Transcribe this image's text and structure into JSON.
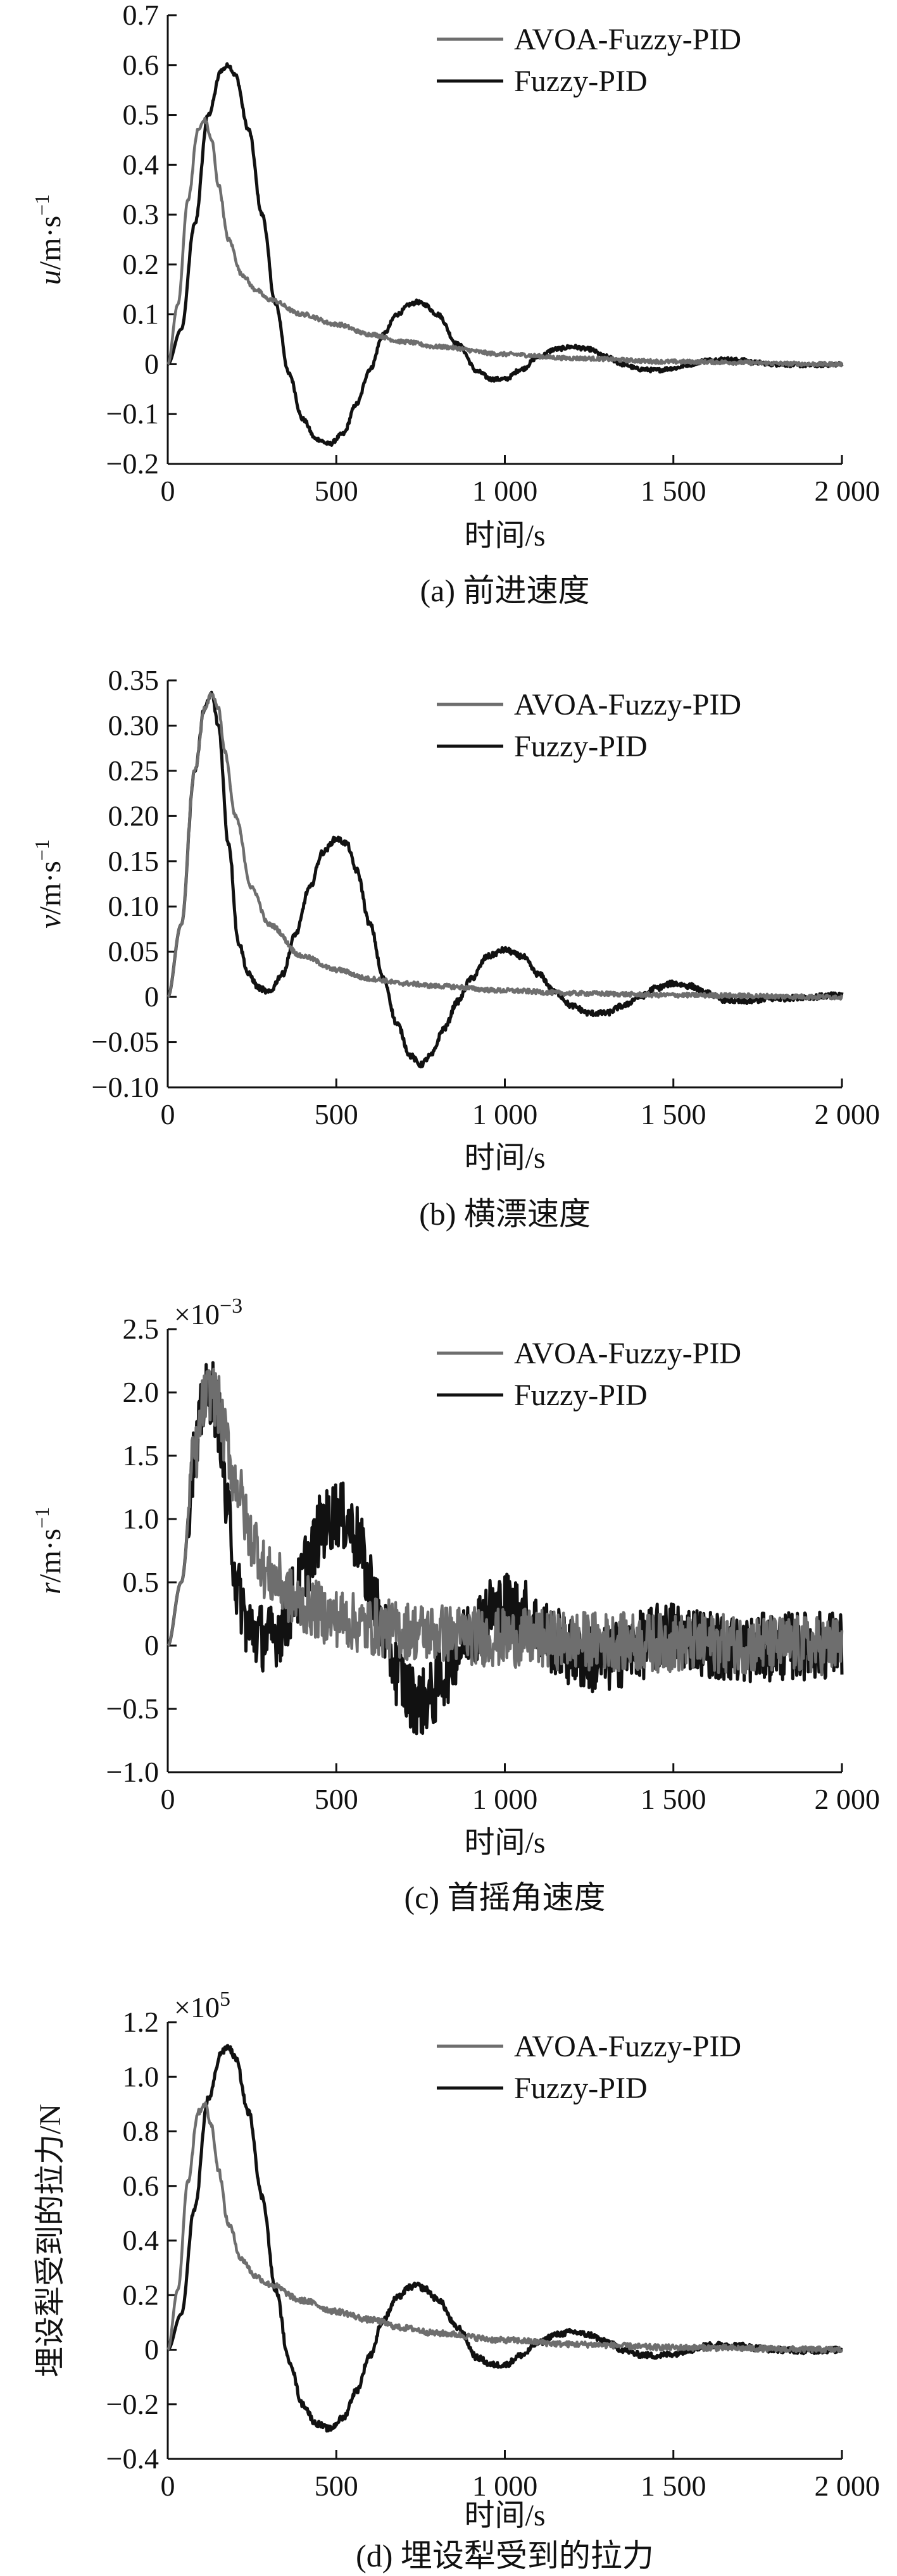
{
  "chart_data": [
    {
      "type": "line",
      "ylabel_var": "u",
      "ylabel_unit": "/m·s",
      "ylabel_sup": "−1",
      "xlabel": "时间/s",
      "caption": "(a) 前进速度",
      "exponent_base": "",
      "exponent_power": "",
      "xlim": [
        0,
        2000
      ],
      "ylim": [
        -0.2,
        0.7
      ],
      "xticks": [
        0,
        500,
        1000,
        1500,
        2000
      ],
      "xtick_labels": [
        "0",
        "500",
        "1 000",
        "1 500",
        "2 000"
      ],
      "yticks": [
        -0.2,
        -0.1,
        0,
        0.1,
        0.2,
        0.3,
        0.4,
        0.5,
        0.6,
        0.7
      ],
      "ytick_labels": [
        "−0.2",
        "−0.1",
        "0",
        "0.1",
        "0.2",
        "0.3",
        "0.4",
        "0.5",
        "0.6",
        "0.7"
      ],
      "legend_position": "top-right",
      "series": [
        {
          "name": "AVOA-Fuzzy-PID",
          "color": "#6e6e6e",
          "x": [
            0,
            30,
            60,
            90,
            110,
            130,
            150,
            180,
            220,
            260,
            300,
            400,
            500,
            600,
            700,
            800,
            1000,
            1200,
            1500,
            2000
          ],
          "y": [
            0,
            0.12,
            0.33,
            0.47,
            0.49,
            0.45,
            0.36,
            0.25,
            0.18,
            0.15,
            0.13,
            0.1,
            0.08,
            0.06,
            0.045,
            0.035,
            0.02,
            0.012,
            0.005,
            0
          ],
          "noise": 0.004
        },
        {
          "name": "Fuzzy-PID",
          "color": "#111111",
          "x": [
            0,
            40,
            80,
            120,
            160,
            180,
            200,
            240,
            280,
            320,
            360,
            400,
            440,
            480,
            520,
            560,
            600,
            640,
            680,
            720,
            740,
            760,
            800,
            860,
            920,
            960,
            1000,
            1050,
            1100,
            1150,
            1200,
            1250,
            1300,
            1350,
            1400,
            1450,
            1500,
            1550,
            1600,
            1650,
            1700,
            1750,
            1800,
            1900,
            2000
          ],
          "y": [
            0,
            0.07,
            0.28,
            0.5,
            0.59,
            0.6,
            0.58,
            0.47,
            0.3,
            0.12,
            -0.02,
            -0.11,
            -0.15,
            -0.16,
            -0.14,
            -0.08,
            -0.01,
            0.06,
            0.1,
            0.12,
            0.125,
            0.12,
            0.1,
            0.04,
            -0.015,
            -0.03,
            -0.03,
            -0.01,
            0.015,
            0.03,
            0.035,
            0.03,
            0.015,
            0.0,
            -0.01,
            -0.012,
            -0.008,
            0.0,
            0.008,
            0.01,
            0.008,
            0.003,
            0.0,
            -0.002,
            0
          ],
          "noise": 0.004
        }
      ]
    },
    {
      "type": "line",
      "ylabel_var": "v",
      "ylabel_unit": "/m·s",
      "ylabel_sup": "−1",
      "xlabel": "时间/s",
      "caption": "(b) 横漂速度",
      "exponent_base": "",
      "exponent_power": "",
      "xlim": [
        0,
        2000
      ],
      "ylim": [
        -0.1,
        0.35
      ],
      "xticks": [
        0,
        500,
        1000,
        1500,
        2000
      ],
      "xtick_labels": [
        "0",
        "500",
        "1 000",
        "1 500",
        "2 000"
      ],
      "yticks": [
        -0.1,
        -0.05,
        0,
        0.05,
        0.1,
        0.15,
        0.2,
        0.25,
        0.3,
        0.35
      ],
      "ytick_labels": [
        "−0.10",
        "−0.05",
        "0",
        "0.05",
        "0.10",
        "0.15",
        "0.20",
        "0.25",
        "0.30",
        "0.35"
      ],
      "legend_position": "top-right",
      "series": [
        {
          "name": "AVOA-Fuzzy-PID",
          "color": "#6e6e6e",
          "x": [
            0,
            40,
            80,
            110,
            130,
            150,
            170,
            200,
            250,
            300,
            400,
            500,
            600,
            700,
            800,
            1000,
            1200,
            1500,
            2000
          ],
          "y": [
            0,
            0.08,
            0.25,
            0.32,
            0.335,
            0.32,
            0.27,
            0.2,
            0.12,
            0.08,
            0.045,
            0.03,
            0.02,
            0.015,
            0.012,
            0.007,
            0.004,
            0.002,
            0
          ],
          "noise": 0.005
        },
        {
          "name": "Fuzzy-PID",
          "color": "#111111",
          "x": [
            0,
            40,
            80,
            110,
            130,
            150,
            180,
            210,
            240,
            270,
            300,
            340,
            380,
            420,
            460,
            500,
            530,
            560,
            600,
            640,
            680,
            720,
            750,
            780,
            820,
            860,
            900,
            950,
            1000,
            1050,
            1100,
            1150,
            1200,
            1250,
            1300,
            1350,
            1400,
            1450,
            1500,
            1550,
            1600,
            1650,
            1700,
            1800,
            1900,
            2000
          ],
          "y": [
            0,
            0.08,
            0.25,
            0.32,
            0.335,
            0.3,
            0.17,
            0.06,
            0.025,
            0.01,
            0.005,
            0.025,
            0.07,
            0.12,
            0.16,
            0.175,
            0.17,
            0.14,
            0.08,
            0.02,
            -0.03,
            -0.065,
            -0.075,
            -0.065,
            -0.035,
            -0.005,
            0.02,
            0.045,
            0.052,
            0.045,
            0.025,
            0.005,
            -0.01,
            -0.018,
            -0.018,
            -0.01,
            0.0,
            0.01,
            0.015,
            0.012,
            0.004,
            -0.003,
            -0.005,
            -0.002,
            0.0,
            0.002
          ],
          "noise": 0.006
        }
      ]
    },
    {
      "type": "line",
      "ylabel_var": "r",
      "ylabel_unit": "/m·s",
      "ylabel_sup": "−1",
      "xlabel": "时间/s",
      "caption": "(c) 首摇角速度",
      "exponent_base": "×10",
      "exponent_power": "−3",
      "xlim": [
        0,
        2000
      ],
      "ylim": [
        -1.0,
        2.5
      ],
      "xticks": [
        0,
        500,
        1000,
        1500,
        2000
      ],
      "xtick_labels": [
        "0",
        "500",
        "1 000",
        "1 500",
        "2 000"
      ],
      "yticks": [
        -1.0,
        -0.5,
        0,
        0.5,
        1.0,
        1.5,
        2.0,
        2.5
      ],
      "ytick_labels": [
        "−1.0",
        "−0.5",
        "0",
        "0.5",
        "1.0",
        "1.5",
        "2.0",
        "2.5"
      ],
      "legend_position": "top-right",
      "series": [
        {
          "name": "AVOA-Fuzzy-PID",
          "color": "#6e6e6e",
          "x": [
            0,
            40,
            80,
            110,
            130,
            150,
            170,
            200,
            250,
            300,
            400,
            500,
            600,
            700,
            800,
            1000,
            1200,
            1500,
            2000
          ],
          "y": [
            0,
            0.5,
            1.5,
            1.95,
            2.02,
            1.9,
            1.65,
            1.3,
            0.85,
            0.55,
            0.32,
            0.22,
            0.15,
            0.12,
            0.1,
            0.06,
            0.04,
            0.02,
            0
          ],
          "noise": 0.06
        },
        {
          "name": "Fuzzy-PID",
          "color": "#111111",
          "x": [
            0,
            40,
            80,
            110,
            130,
            150,
            180,
            210,
            240,
            270,
            300,
            340,
            380,
            420,
            460,
            500,
            530,
            560,
            600,
            640,
            680,
            720,
            750,
            780,
            820,
            860,
            900,
            950,
            1000,
            1050,
            1100,
            1150,
            1200,
            1250,
            1300,
            1350,
            1400,
            1450,
            1500,
            1550,
            1600,
            1650,
            1700,
            1800,
            1900,
            2000
          ],
          "y": [
            0,
            0.5,
            1.5,
            1.95,
            2.02,
            1.8,
            1.0,
            0.4,
            0.15,
            0.08,
            0.05,
            0.15,
            0.4,
            0.7,
            0.95,
            1.05,
            1.0,
            0.85,
            0.5,
            0.12,
            -0.2,
            -0.4,
            -0.45,
            -0.4,
            -0.22,
            -0.03,
            0.12,
            0.27,
            0.32,
            0.27,
            0.15,
            0.03,
            -0.06,
            -0.11,
            -0.11,
            -0.06,
            0.0,
            0.06,
            0.09,
            0.07,
            0.02,
            -0.02,
            -0.03,
            -0.01,
            0.0,
            0.01
          ],
          "noise": 0.07
        }
      ]
    },
    {
      "type": "line",
      "ylabel_var": "",
      "ylabel_unit": "埋设犁受到的拉力/N",
      "ylabel_sup": "",
      "xlabel": "时间/s",
      "caption": "(d) 埋设犁受到的拉力",
      "exponent_base": "×10",
      "exponent_power": "5",
      "xlim": [
        0,
        2000
      ],
      "ylim": [
        -0.4,
        1.2
      ],
      "xticks": [
        0,
        500,
        1000,
        1500,
        2000
      ],
      "xtick_labels": [
        "0",
        "500",
        "1 000",
        "1 500",
        "2 000"
      ],
      "yticks": [
        -0.4,
        -0.2,
        0,
        0.2,
        0.4,
        0.6,
        0.8,
        1.0,
        1.2
      ],
      "ytick_labels": [
        "−0.4",
        "−0.2",
        "0",
        "0.2",
        "0.4",
        "0.6",
        "0.8",
        "1.0",
        "1.2"
      ],
      "legend_position": "top-right",
      "series": [
        {
          "name": "AVOA-Fuzzy-PID",
          "color": "#6e6e6e",
          "x": [
            0,
            30,
            60,
            90,
            110,
            130,
            150,
            180,
            220,
            260,
            300,
            400,
            500,
            600,
            700,
            800,
            1000,
            1200,
            1500,
            2000
          ],
          "y": [
            0,
            0.22,
            0.62,
            0.87,
            0.9,
            0.82,
            0.66,
            0.46,
            0.33,
            0.27,
            0.24,
            0.18,
            0.14,
            0.11,
            0.08,
            0.06,
            0.035,
            0.02,
            0.008,
            0
          ],
          "noise": 0.006
        },
        {
          "name": "Fuzzy-PID",
          "color": "#111111",
          "x": [
            0,
            40,
            80,
            120,
            160,
            180,
            200,
            240,
            280,
            320,
            360,
            400,
            440,
            480,
            520,
            560,
            600,
            640,
            680,
            720,
            740,
            760,
            800,
            860,
            920,
            960,
            1000,
            1050,
            1100,
            1150,
            1200,
            1250,
            1300,
            1350,
            1400,
            1450,
            1500,
            1550,
            1600,
            1650,
            1700,
            1750,
            1800,
            1900,
            2000
          ],
          "y": [
            0,
            0.13,
            0.52,
            0.92,
            1.09,
            1.11,
            1.07,
            0.87,
            0.56,
            0.22,
            -0.04,
            -0.2,
            -0.27,
            -0.29,
            -0.25,
            -0.15,
            -0.02,
            0.11,
            0.19,
            0.23,
            0.235,
            0.225,
            0.185,
            0.08,
            -0.03,
            -0.055,
            -0.055,
            -0.02,
            0.025,
            0.055,
            0.065,
            0.055,
            0.03,
            0.0,
            -0.018,
            -0.022,
            -0.015,
            0.0,
            0.015,
            0.018,
            0.015,
            0.006,
            0.0,
            -0.004,
            0
          ],
          "noise": 0.006
        }
      ]
    }
  ]
}
